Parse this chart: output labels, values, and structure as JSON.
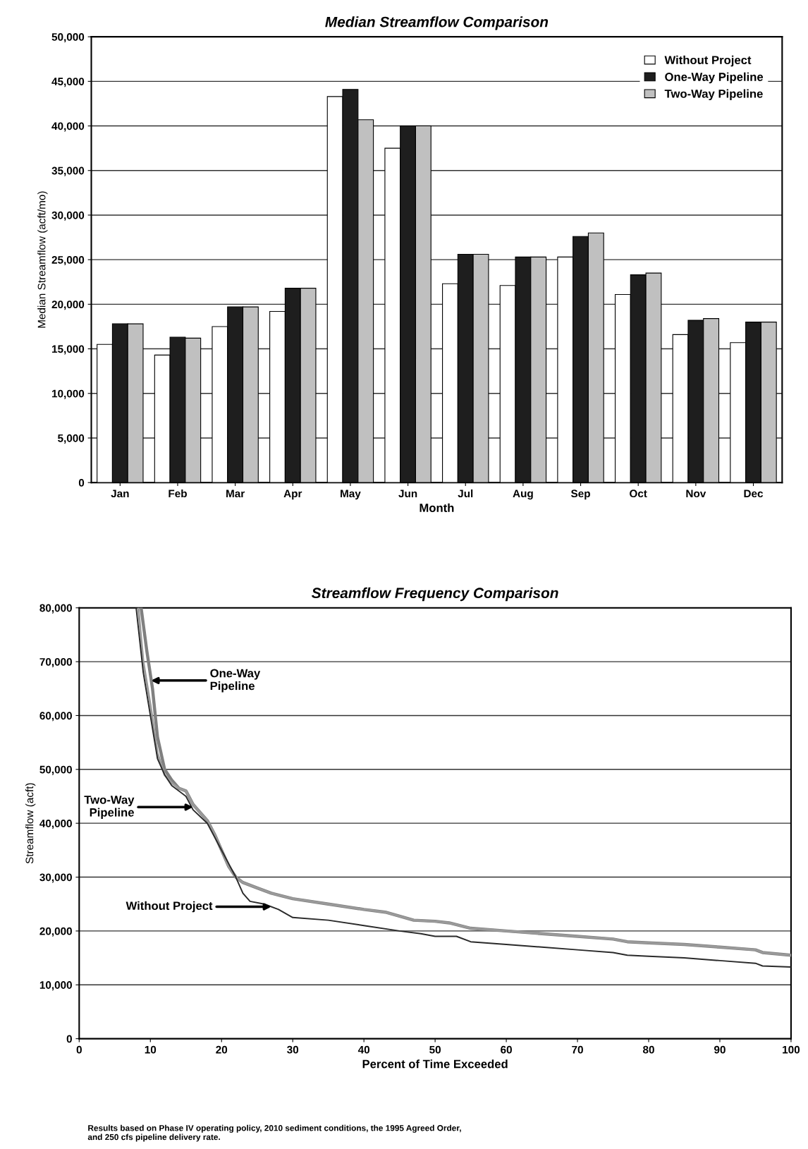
{
  "chart_data": [
    {
      "type": "bar",
      "title": "Median Streamflow Comparison",
      "xlabel": "Month",
      "ylabel": "Median Streamflow (acft/mo)",
      "categories": [
        "Jan",
        "Feb",
        "Mar",
        "Apr",
        "May",
        "Jun",
        "Jul",
        "Aug",
        "Sep",
        "Oct",
        "Nov",
        "Dec"
      ],
      "series": [
        {
          "name": "Without Project",
          "color": "#ffffff",
          "values": [
            15500,
            14300,
            17500,
            19200,
            43300,
            37500,
            22300,
            22100,
            25300,
            21100,
            16600,
            15700
          ]
        },
        {
          "name": "One-Way Pipeline",
          "color": "#1e1e1e",
          "values": [
            17800,
            16300,
            19700,
            21800,
            44100,
            40000,
            25600,
            25300,
            27600,
            23300,
            18200,
            18000
          ]
        },
        {
          "name": "Two-Way Pipeline",
          "color": "#c0c0c0",
          "values": [
            17800,
            16200,
            19700,
            21800,
            40700,
            40000,
            25600,
            25300,
            28000,
            23500,
            18400,
            18000
          ]
        }
      ],
      "ylim": [
        0,
        50000
      ],
      "yticks": [
        {
          "value": 0,
          "label": "0"
        },
        {
          "value": 5000,
          "label": "5,000"
        },
        {
          "value": 10000,
          "label": "10,000"
        },
        {
          "value": 15000,
          "label": "15,000"
        },
        {
          "value": 20000,
          "label": "20,000"
        },
        {
          "value": 25000,
          "label": "25,000"
        },
        {
          "value": 30000,
          "label": "30,000"
        },
        {
          "value": 35000,
          "label": "35,000"
        },
        {
          "value": 40000,
          "label": "40,000"
        },
        {
          "value": 45000,
          "label": "45,000"
        },
        {
          "value": 50000,
          "label": "50,000"
        }
      ],
      "grid": "y",
      "legend": "top right"
    },
    {
      "type": "line",
      "title": "Streamflow Frequency Comparison",
      "xlabel": "Percent of Time Exceeded",
      "ylabel": "Streamflow (acft)",
      "series": [
        {
          "color": "#808080",
          "x": [
            8.7,
            9.5,
            10.3,
            11,
            12,
            13,
            14,
            15,
            16,
            17,
            18,
            19,
            20,
            21,
            22,
            23,
            25,
            27,
            30,
            35,
            40,
            43,
            47,
            50,
            52,
            55,
            60,
            65,
            70,
            75,
            77,
            80,
            85,
            90,
            95,
            96,
            100
          ],
          "values": [
            80000,
            72000,
            65000,
            56000,
            50000,
            48000,
            46500,
            46000,
            43500,
            42000,
            40500,
            38000,
            35000,
            32000,
            30000,
            29000,
            28000,
            27000,
            26000,
            25000,
            24000,
            23500,
            22000,
            21800,
            21500,
            20500,
            20000,
            19500,
            19000,
            18500,
            18000,
            17800,
            17500,
            17000,
            16500,
            16000,
            15500
          ]
        },
        {
          "color": "#9a9a9a",
          "x": [
            8.3,
            9,
            10,
            11,
            12,
            13,
            14,
            15,
            16,
            17,
            18,
            19,
            20,
            21,
            22,
            23,
            25,
            27,
            30,
            35,
            40,
            43,
            47,
            50,
            52,
            55,
            60,
            65,
            70,
            75,
            77,
            80,
            85,
            90,
            95,
            96,
            100
          ],
          "values": [
            80000,
            70000,
            62000,
            53000,
            49000,
            47500,
            46500,
            46000,
            43500,
            42000,
            40500,
            38000,
            35000,
            32000,
            30000,
            29000,
            28000,
            27000,
            26000,
            25000,
            24000,
            23500,
            22000,
            21800,
            21500,
            20500,
            20000,
            19500,
            19000,
            18500,
            18000,
            17800,
            17500,
            17000,
            16500,
            16000,
            15500
          ]
        },
        {
          "color": "#2a2a2a",
          "x": [
            8,
            9,
            10,
            11,
            12,
            13,
            15,
            16,
            18,
            20,
            22,
            23,
            24,
            26,
            28,
            30,
            35,
            40,
            45,
            48,
            50,
            53,
            55,
            60,
            65,
            70,
            75,
            77,
            80,
            85,
            90,
            95,
            96,
            100
          ],
          "values": [
            80000,
            68000,
            60000,
            52000,
            49000,
            47000,
            45000,
            42500,
            40000,
            35000,
            30000,
            27000,
            25500,
            25000,
            24000,
            22500,
            22000,
            21000,
            20000,
            19500,
            19000,
            19000,
            18000,
            17500,
            17000,
            16500,
            16000,
            15500,
            15300,
            15000,
            14500,
            14000,
            13500,
            13300
          ]
        }
      ],
      "xlim": [
        0,
        100
      ],
      "xticks": [
        0,
        10,
        20,
        30,
        40,
        50,
        60,
        70,
        80,
        90,
        100
      ],
      "ylim": [
        0,
        80000
      ],
      "yticks": [
        {
          "value": 0,
          "label": "0"
        },
        {
          "value": 10000,
          "label": "10,000"
        },
        {
          "value": 20000,
          "label": "20,000"
        },
        {
          "value": 30000,
          "label": "30,000"
        },
        {
          "value": 40000,
          "label": "40,000"
        },
        {
          "value": 50000,
          "label": "50,000"
        },
        {
          "value": 60000,
          "label": "60,000"
        },
        {
          "value": 70000,
          "label": "70,000"
        },
        {
          "value": 80000,
          "label": "80,000"
        }
      ],
      "grid": "y",
      "marker": "none",
      "line_style": "solid",
      "annotations": [
        {
          "text": "One-Way\nPipeline",
          "x": 10.1,
          "y": 66500
        },
        {
          "text": "Two-Way\nPipeline",
          "x": 16,
          "y": 43000
        },
        {
          "text": "Without Project",
          "x": 27,
          "y": 24500
        },
        "Results based on Phase IV operating policy, 2010 sediment conditions, the 1995 Agreed Order,\nand 250 cfs pipeline delivery rate."
      ]
    }
  ]
}
